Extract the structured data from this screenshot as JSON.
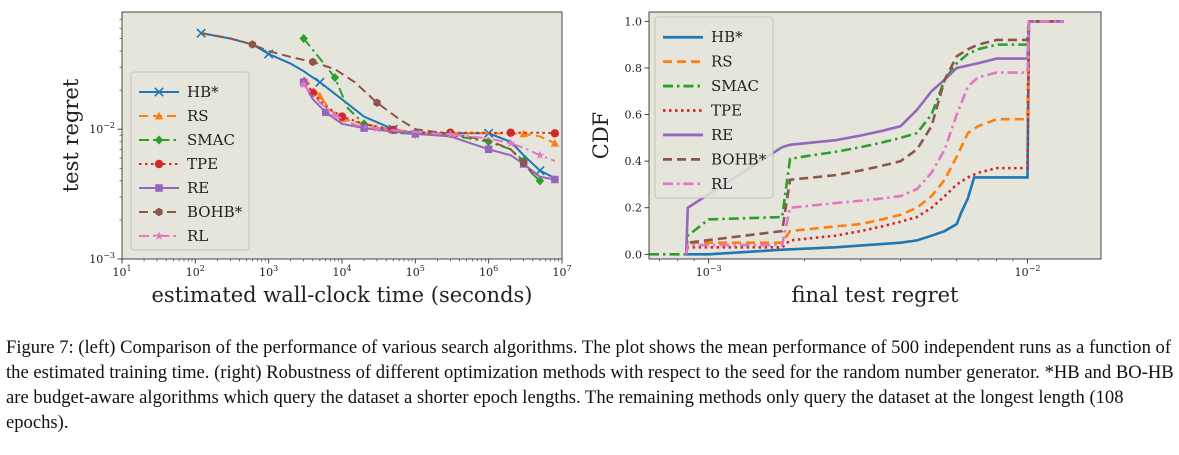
{
  "figure": {
    "caption": "Figure 7: (left) Comparison of the performance of various search algorithms. The plot shows the mean performance of 500 independent runs as a function of the estimated training time. (right) Robustness of different optimization methods with respect to the seed for the random number generator. *HB and BO-HB are budget-aware algorithms which query the dataset a shorter epoch lengths. The remaining methods only query the dataset at the longest length (108 epochs)."
  },
  "colors": {
    "HB*": "#1f77b4",
    "RS": "#ff7f0e",
    "SMAC": "#2ca02c",
    "TPE": "#d62728",
    "RE": "#9467bd",
    "BOHB*": "#8c564b",
    "RL": "#e377c2",
    "plot_bg": "#e5e5dc"
  },
  "chart_data": [
    {
      "type": "line",
      "title": "",
      "xlabel": "estimated wall-clock time (seconds)",
      "ylabel": "test regret",
      "xscale": "log",
      "yscale": "log",
      "xlim": [
        10,
        10000000
      ],
      "ylim": [
        0.001,
        0.08
      ],
      "xticks": [
        "10^1",
        "10^2",
        "10^3",
        "10^4",
        "10^5",
        "10^6",
        "10^7"
      ],
      "yticks": [
        "10^-3",
        "10^-2"
      ],
      "legend": "center-left",
      "grid": false,
      "series": [
        {
          "name": "HB*",
          "marker": "x",
          "dash": "solid",
          "x": [
            120,
            300,
            600,
            1000,
            2000,
            3000,
            5000,
            10000,
            20000,
            50000,
            100000,
            300000,
            1000000,
            2000000,
            3000000,
            5000000,
            8000000
          ],
          "y": [
            0.055,
            0.05,
            0.045,
            0.038,
            0.032,
            0.028,
            0.023,
            0.017,
            0.0125,
            0.01,
            0.0093,
            0.0093,
            0.0093,
            0.008,
            0.0063,
            0.0048,
            0.0042
          ]
        },
        {
          "name": "RS",
          "marker": "^",
          "dash": "dashed",
          "x": [
            3000,
            5000,
            7000,
            10000,
            20000,
            50000,
            100000,
            300000,
            1000000,
            3000000,
            5000000,
            8000000
          ],
          "y": [
            0.025,
            0.018,
            0.014,
            0.012,
            0.011,
            0.0099,
            0.0094,
            0.0093,
            0.0093,
            0.0092,
            0.0088,
            0.0078
          ]
        },
        {
          "name": "SMAC",
          "marker": "D",
          "dash": "dashdot",
          "x": [
            3000,
            5000,
            8000,
            12000,
            20000,
            50000,
            100000,
            300000,
            1000000,
            2000000,
            3000000,
            4000000,
            5000000
          ],
          "y": [
            0.05,
            0.035,
            0.025,
            0.0145,
            0.011,
            0.0094,
            0.0092,
            0.009,
            0.008,
            0.007,
            0.0057,
            0.0045,
            0.004
          ]
        },
        {
          "name": "TPE",
          "marker": "o",
          "dash": "dotted",
          "x": [
            3000,
            4000,
            6000,
            10000,
            20000,
            50000,
            100000,
            300000,
            1000000,
            2000000,
            5000000,
            8000000
          ],
          "y": [
            0.025,
            0.019,
            0.015,
            0.0125,
            0.011,
            0.0099,
            0.0095,
            0.0094,
            0.0094,
            0.0094,
            0.0094,
            0.0093
          ]
        },
        {
          "name": "RE",
          "marker": "s",
          "dash": "solid",
          "x": [
            3000,
            4000,
            6000,
            10000,
            20000,
            50000,
            100000,
            300000,
            1000000,
            2000000,
            3000000,
            5000000,
            8000000
          ],
          "y": [
            0.023,
            0.017,
            0.0135,
            0.011,
            0.0102,
            0.0096,
            0.0092,
            0.0088,
            0.007,
            0.0063,
            0.0054,
            0.0043,
            0.0041
          ]
        },
        {
          "name": "BOHB*",
          "marker": "h",
          "dash": "dashed",
          "x": [
            120,
            300,
            600,
            1000,
            2000,
            4000,
            8000,
            15000,
            30000,
            60000,
            100000,
            300000,
            1000000,
            2000000,
            3000000,
            4000000
          ],
          "y": [
            0.055,
            0.05,
            0.045,
            0.04,
            0.036,
            0.033,
            0.029,
            0.023,
            0.016,
            0.012,
            0.01,
            0.0092,
            0.0082,
            0.007,
            0.0055,
            0.0045
          ]
        },
        {
          "name": "RL",
          "marker": "*",
          "dash": "dashdot",
          "x": [
            3000,
            5000,
            8000,
            15000,
            30000,
            100000,
            300000,
            1000000,
            2000000,
            3000000,
            5000000,
            8000000
          ],
          "y": [
            0.022,
            0.016,
            0.0128,
            0.0108,
            0.0101,
            0.0095,
            0.0091,
            0.0085,
            0.0078,
            0.0072,
            0.0063,
            0.0057
          ]
        }
      ]
    },
    {
      "type": "line",
      "title": "",
      "xlabel": "final test regret",
      "ylabel": "CDF",
      "xscale": "log",
      "xlim": [
        0.00065,
        0.017
      ],
      "ylim": [
        -0.02,
        1.04
      ],
      "xticks": [
        "10^-3",
        "10^-2"
      ],
      "yticks": [
        "0.0",
        "0.2",
        "0.4",
        "0.6",
        "0.8",
        "1.0"
      ],
      "legend": "upper-left",
      "grid": false,
      "series": [
        {
          "name": "HB*",
          "dash": "solid",
          "x": [
            0.00085,
            0.001,
            0.0017,
            0.0025,
            0.004,
            0.0045,
            0.005,
            0.0055,
            0.006,
            0.0062,
            0.0065,
            0.0068,
            0.01,
            0.0101,
            0.013
          ],
          "y": [
            0.0,
            0.0,
            0.02,
            0.03,
            0.05,
            0.06,
            0.08,
            0.1,
            0.13,
            0.18,
            0.24,
            0.33,
            0.33,
            1.0,
            1.0
          ]
        },
        {
          "name": "RS",
          "dash": "dashed",
          "x": [
            0.00085,
            0.00086,
            0.0017,
            0.0018,
            0.0025,
            0.003,
            0.0035,
            0.004,
            0.0045,
            0.005,
            0.0055,
            0.006,
            0.0065,
            0.007,
            0.008,
            0.01,
            0.0101,
            0.013
          ],
          "y": [
            0.0,
            0.05,
            0.05,
            0.1,
            0.12,
            0.13,
            0.15,
            0.17,
            0.2,
            0.25,
            0.32,
            0.42,
            0.52,
            0.55,
            0.58,
            0.58,
            1.0,
            1.0
          ]
        },
        {
          "name": "SMAC",
          "dash": "dashdot",
          "x": [
            0.00065,
            0.00085,
            0.00086,
            0.001,
            0.0017,
            0.0018,
            0.002,
            0.0025,
            0.003,
            0.0035,
            0.004,
            0.0045,
            0.005,
            0.0055,
            0.006,
            0.0065,
            0.007,
            0.008,
            0.01,
            0.0101,
            0.013
          ],
          "y": [
            0.0,
            0.0,
            0.08,
            0.15,
            0.16,
            0.41,
            0.42,
            0.44,
            0.46,
            0.48,
            0.5,
            0.52,
            0.6,
            0.75,
            0.82,
            0.86,
            0.88,
            0.9,
            0.9,
            1.0,
            1.0
          ]
        },
        {
          "name": "TPE",
          "dash": "dotted",
          "x": [
            0.00085,
            0.00086,
            0.0017,
            0.0018,
            0.0025,
            0.003,
            0.0035,
            0.004,
            0.0045,
            0.005,
            0.0055,
            0.006,
            0.0065,
            0.007,
            0.008,
            0.01,
            0.0101,
            0.013
          ],
          "y": [
            0.0,
            0.03,
            0.03,
            0.06,
            0.08,
            0.1,
            0.12,
            0.14,
            0.16,
            0.2,
            0.25,
            0.3,
            0.33,
            0.35,
            0.37,
            0.37,
            1.0,
            1.0
          ]
        },
        {
          "name": "RE",
          "dash": "solid",
          "x": [
            0.00085,
            0.00086,
            0.0017,
            0.0018,
            0.0025,
            0.003,
            0.0035,
            0.004,
            0.0045,
            0.005,
            0.0055,
            0.006,
            0.007,
            0.008,
            0.0095,
            0.01,
            0.0101,
            0.013
          ],
          "y": [
            0.0,
            0.2,
            0.46,
            0.47,
            0.49,
            0.51,
            0.53,
            0.55,
            0.62,
            0.7,
            0.75,
            0.8,
            0.82,
            0.84,
            0.84,
            0.84,
            1.0,
            1.0
          ]
        },
        {
          "name": "BOHB*",
          "dash": "dashed",
          "x": [
            0.00085,
            0.00086,
            0.0017,
            0.0018,
            0.0025,
            0.003,
            0.0035,
            0.004,
            0.0045,
            0.005,
            0.0055,
            0.006,
            0.0065,
            0.007,
            0.008,
            0.01,
            0.0101,
            0.013
          ],
          "y": [
            0.0,
            0.05,
            0.1,
            0.32,
            0.34,
            0.36,
            0.38,
            0.4,
            0.45,
            0.55,
            0.75,
            0.85,
            0.88,
            0.9,
            0.92,
            0.92,
            1.0,
            1.0
          ]
        },
        {
          "name": "RL",
          "dash": "dashdot",
          "x": [
            0.00085,
            0.00086,
            0.0017,
            0.0018,
            0.0025,
            0.003,
            0.0035,
            0.004,
            0.0045,
            0.005,
            0.0055,
            0.006,
            0.0065,
            0.007,
            0.008,
            0.01,
            0.0101,
            0.013
          ],
          "y": [
            0.0,
            0.04,
            0.04,
            0.2,
            0.22,
            0.23,
            0.24,
            0.25,
            0.28,
            0.35,
            0.45,
            0.6,
            0.72,
            0.76,
            0.78,
            0.78,
            1.0,
            1.0
          ]
        }
      ]
    }
  ]
}
